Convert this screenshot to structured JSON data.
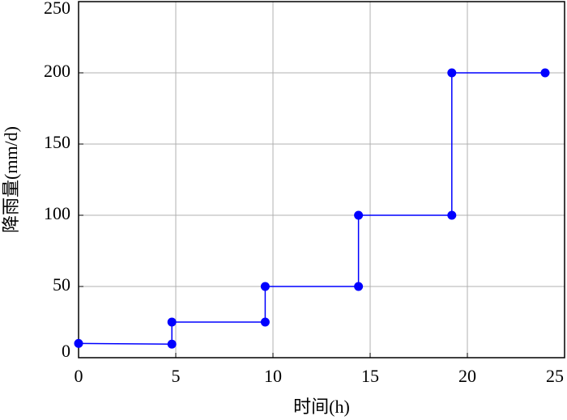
{
  "chart_data": {
    "type": "line",
    "x_label": "时间(h)",
    "y_label": "降雨量(mm/d)",
    "x": [
      0,
      4.8,
      4.8,
      9.6,
      9.6,
      14.4,
      14.4,
      19.2,
      19.2,
      24
    ],
    "series": [
      {
        "name": "降雨量",
        "color": "#0000ff",
        "values": [
          10,
          9.5,
          25,
          25,
          50,
          50,
          100,
          100,
          200,
          200
        ]
      }
    ],
    "xlim": [
      0,
      25
    ],
    "xticks": [
      0,
      5,
      10,
      15,
      20,
      25
    ],
    "ylim": [
      0,
      250
    ],
    "yticks": [
      0,
      50,
      100,
      150,
      200,
      250
    ],
    "grid": true
  }
}
